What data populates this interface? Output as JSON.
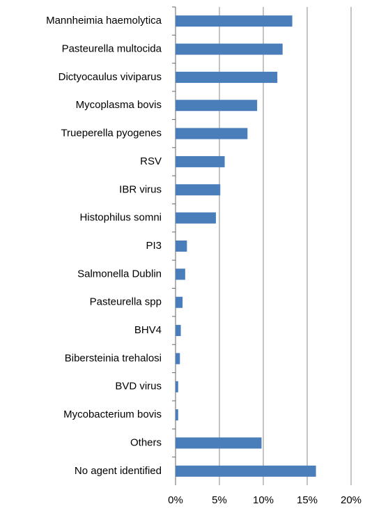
{
  "chart_data": {
    "type": "bar",
    "orientation": "horizontal",
    "categories": [
      "Mannheimia haemolytica",
      "Pasteurella multocida",
      "Dictyocaulus viviparus",
      "Mycoplasma bovis",
      "Trueperella pyogenes",
      "RSV",
      "IBR virus",
      "Histophilus somni",
      "PI3",
      "Salmonella Dublin",
      "Pasteurella spp",
      "BHV4",
      "Bibersteinia trehalosi",
      "BVD virus",
      "Mycobacterium bovis",
      "Others",
      "No agent identified"
    ],
    "values": [
      13.3,
      12.2,
      11.6,
      9.3,
      8.2,
      5.6,
      5.1,
      4.6,
      1.3,
      1.1,
      0.8,
      0.6,
      0.5,
      0.3,
      0.3,
      9.8,
      16.0
    ],
    "color": "#4a7ebb",
    "xlim": [
      0,
      20
    ],
    "xticks": [
      {
        "value": 0,
        "label": "0%"
      },
      {
        "value": 5,
        "label": "5%"
      },
      {
        "value": 10,
        "label": "10%"
      },
      {
        "value": 15,
        "label": "15%"
      },
      {
        "value": 20,
        "label": "20%"
      }
    ],
    "grid": true
  }
}
